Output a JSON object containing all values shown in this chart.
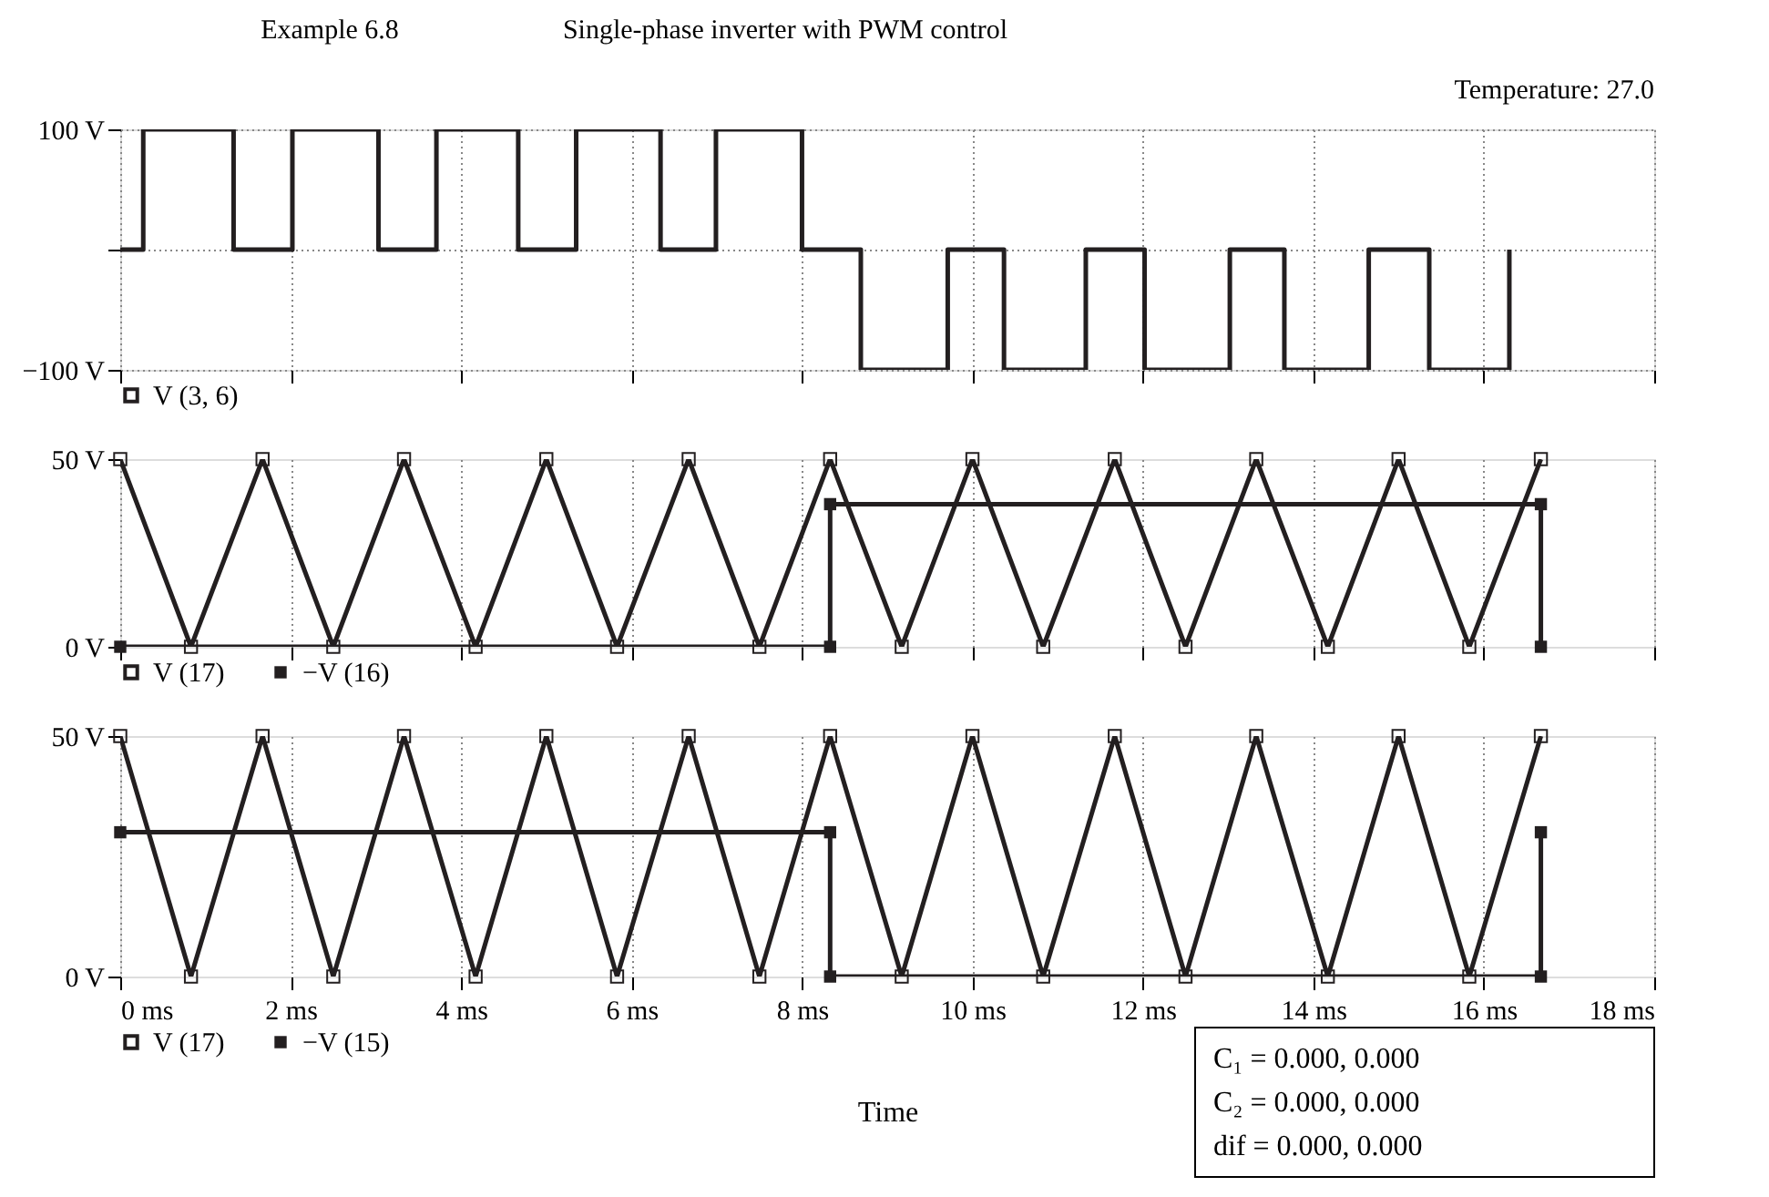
{
  "chart_data": [
    {
      "type": "step",
      "title": "Example 6.8",
      "subtitle": "Single-phase inverter with PWM control",
      "annotations": [
        "Temperature: 27.0"
      ],
      "series": [
        {
          "name": "V (3, 6)",
          "color": "#231f20",
          "x": [
            0,
            0.27,
            1.33,
            2.02,
            3.03,
            3.71,
            4.67,
            5.35,
            6.34,
            6.99,
            8.0,
            8.69,
            9.71,
            10.37,
            11.33,
            12.02,
            13.02,
            13.66,
            14.65,
            15.36,
            16.3
          ],
          "values": [
            0,
            100,
            0,
            100,
            0,
            100,
            0,
            100,
            0,
            100,
            0,
            -100,
            0,
            -100,
            0,
            -100,
            0,
            -100,
            0,
            -100,
            0
          ]
        }
      ],
      "xlim": [
        0,
        18
      ],
      "xticks": [
        0,
        2,
        4,
        6,
        8,
        10,
        12,
        14,
        16,
        18
      ],
      "ylim": [
        -100,
        100
      ],
      "yticks": [
        {
          "value": -100,
          "label": "−100 V"
        },
        {
          "value": 0,
          "label": null
        },
        {
          "value": 100,
          "label": "100 V"
        }
      ],
      "grid": true,
      "legend": "bottom left",
      "tick_labels": "y"
    },
    {
      "type": "line",
      "series": [
        {
          "name": "V (17)",
          "color": "#231f20",
          "marker": "square",
          "x": [
            0,
            0.83,
            1.67,
            2.5,
            3.33,
            4.17,
            5.0,
            5.83,
            6.67,
            7.5,
            8.33,
            9.17,
            10.0,
            10.83,
            11.67,
            12.5,
            13.33,
            14.17,
            15.0,
            15.83,
            16.67
          ],
          "values": [
            50,
            0,
            50,
            0,
            50,
            0,
            50,
            0,
            50,
            0,
            50,
            0,
            50,
            0,
            50,
            0,
            50,
            0,
            50,
            0,
            50
          ]
        },
        {
          "name": "−V (16)",
          "color": "#231f20",
          "marker": "square",
          "x": [
            0,
            8.33,
            8.33,
            16.67,
            16.67
          ],
          "values": [
            0,
            0,
            38,
            38,
            0
          ]
        }
      ],
      "xlim": [
        0,
        18
      ],
      "xticks": [
        0,
        2,
        4,
        6,
        8,
        10,
        12,
        14,
        16,
        18
      ],
      "ylim": [
        0,
        50
      ],
      "yticks": [
        {
          "value": 0,
          "label": "0 V"
        },
        {
          "value": 50,
          "label": "50 V"
        }
      ],
      "grid": "x",
      "legend": "bottom left",
      "tick_labels": "y"
    },
    {
      "type": "line",
      "xlabel": "Time",
      "annotations": [
        "C₁ = 0.000, 0.000",
        "C₂ = 0.000, 0.000",
        "dif = 0.000, 0.000"
      ],
      "series": [
        {
          "name": "V (17)",
          "color": "#231f20",
          "marker": "square",
          "x": [
            0,
            0.83,
            1.67,
            2.5,
            3.33,
            4.17,
            5.0,
            5.83,
            6.67,
            7.5,
            8.33,
            9.17,
            10.0,
            10.83,
            11.67,
            12.5,
            13.33,
            14.17,
            15.0,
            15.83,
            16.67
          ],
          "values": [
            50,
            0,
            50,
            0,
            50,
            0,
            50,
            0,
            50,
            0,
            50,
            0,
            50,
            0,
            50,
            0,
            50,
            0,
            50,
            0,
            50
          ]
        },
        {
          "name": "−V (15)",
          "color": "#231f20",
          "marker": "square",
          "x": [
            0,
            8.33,
            8.33,
            16.67,
            16.67
          ],
          "values": [
            30,
            30,
            0,
            0,
            30
          ]
        }
      ],
      "xlim": [
        0,
        18
      ],
      "xticks": [
        {
          "value": 0,
          "label": "0 ms"
        },
        {
          "value": 2,
          "label": "2 ms"
        },
        {
          "value": 4,
          "label": "4 ms"
        },
        {
          "value": 6,
          "label": "6 ms"
        },
        {
          "value": 8,
          "label": "8 ms"
        },
        {
          "value": 10,
          "label": "10 ms"
        },
        {
          "value": 12,
          "label": "12 ms"
        },
        {
          "value": 14,
          "label": "14 ms"
        },
        {
          "value": 16,
          "label": "16 ms"
        },
        {
          "value": 18,
          "label": "18 ms"
        }
      ],
      "ylim": [
        0,
        50
      ],
      "yticks": [
        {
          "value": 0,
          "label": "0 V"
        },
        {
          "value": 50,
          "label": "50 V"
        }
      ],
      "grid": "x",
      "legend": "bottom left"
    }
  ]
}
